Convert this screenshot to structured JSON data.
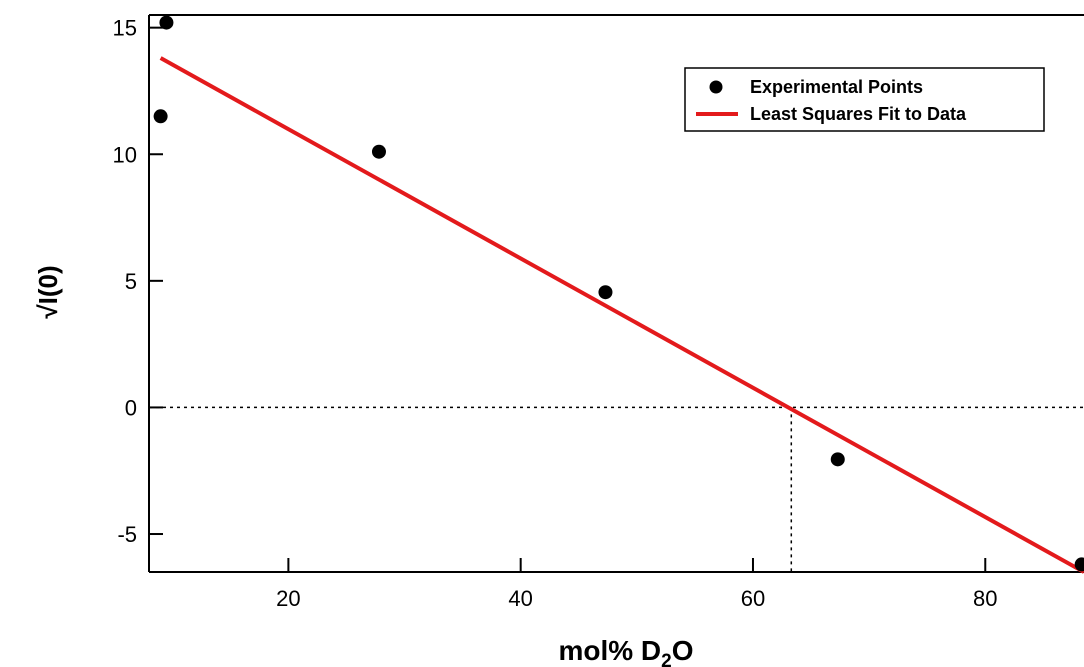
{
  "chart_data": {
    "type": "scatter",
    "xlabel": {
      "main": "mol% D",
      "sub": "2",
      "suffix": "O"
    },
    "ylabel": "√I(0)",
    "xlim": [
      8,
      88.5
    ],
    "ylim": [
      -6.5,
      15.5
    ],
    "xticks": [
      "20",
      "40",
      "60",
      "80"
    ],
    "yticks": [
      "-5",
      "0",
      "5",
      "10",
      "15"
    ],
    "grid": false,
    "legend_position": "top-right",
    "series": [
      {
        "name": "Experimental Points",
        "kind": "points",
        "color": "#000000",
        "x": [
          9.0,
          9.5,
          27.8,
          47.3,
          67.3,
          88.3
        ],
        "y": [
          11.5,
          15.2,
          10.1,
          4.55,
          -2.05,
          -6.2
        ]
      },
      {
        "name": "Least Squares Fit to Data",
        "kind": "line",
        "color": "#e31a1c",
        "x": [
          9.0,
          88.5
        ],
        "y": [
          13.8,
          -6.5
        ]
      }
    ],
    "reference_lines": {
      "zero_line_y": 0,
      "x_intercept": 63.3,
      "style": "dotted"
    }
  }
}
